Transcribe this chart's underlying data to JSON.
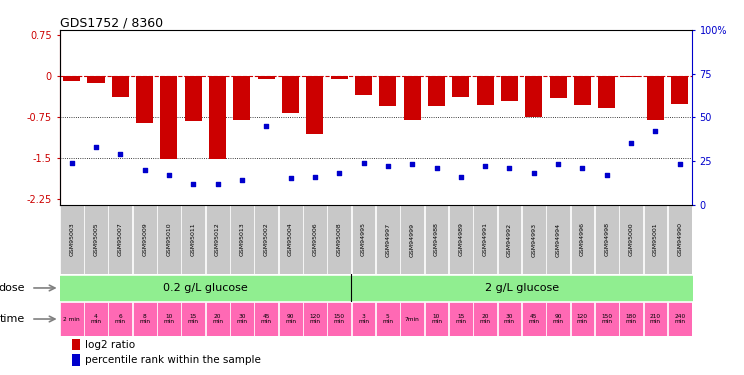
{
  "title": "GDS1752 / 8360",
  "samples": [
    "GSM95003",
    "GSM95005",
    "GSM95007",
    "GSM95009",
    "GSM95010",
    "GSM95011",
    "GSM95012",
    "GSM95013",
    "GSM95002",
    "GSM95004",
    "GSM95006",
    "GSM95008",
    "GSM94995",
    "GSM94997",
    "GSM94999",
    "GSM94988",
    "GSM94989",
    "GSM94991",
    "GSM94992",
    "GSM94993",
    "GSM94994",
    "GSM94996",
    "GSM94998",
    "GSM95000",
    "GSM95001",
    "GSM94990"
  ],
  "log2_ratio": [
    -0.08,
    -0.13,
    -0.38,
    -0.85,
    -1.52,
    -0.82,
    -1.52,
    -0.8,
    -0.05,
    -0.68,
    -1.05,
    -0.05,
    -0.35,
    -0.55,
    -0.8,
    -0.55,
    -0.38,
    -0.52,
    -0.45,
    -0.75,
    -0.4,
    -0.52,
    -0.58,
    -0.02,
    -0.8,
    -0.5
  ],
  "percentile_rank": [
    24,
    33,
    29,
    20,
    17,
    12,
    12,
    14,
    45,
    15,
    16,
    18,
    24,
    22,
    23,
    21,
    16,
    22,
    21,
    18,
    23,
    21,
    17,
    35,
    42,
    23
  ],
  "time_labels": [
    "2 min",
    "4\nmin",
    "6\nmin",
    "8\nmin",
    "10\nmin",
    "15\nmin",
    "20\nmin",
    "30\nmin",
    "45\nmin",
    "90\nmin",
    "120\nmin",
    "150\nmin",
    "3\nmin",
    "5\nmin",
    "7min",
    "10\nmin",
    "15\nmin",
    "20\nmin",
    "30\nmin",
    "45\nmin",
    "90\nmin",
    "120\nmin",
    "150\nmin",
    "180\nmin",
    "210\nmin",
    "240\nmin"
  ],
  "bar_color": "#CC0000",
  "dot_color": "#0000CC",
  "ylim_left": [
    -2.35,
    0.85
  ],
  "ylim_right": [
    0,
    100
  ],
  "yticks_left": [
    0.75,
    0,
    -0.75,
    -1.5,
    -2.25
  ],
  "yticks_right": [
    100,
    75,
    50,
    25,
    0
  ],
  "green_color": "#90EE90",
  "pink_color": "#FF69B4",
  "gray_color": "#C8C8C8",
  "background_color": "#ffffff",
  "dose_split": 12,
  "n_samples": 26
}
